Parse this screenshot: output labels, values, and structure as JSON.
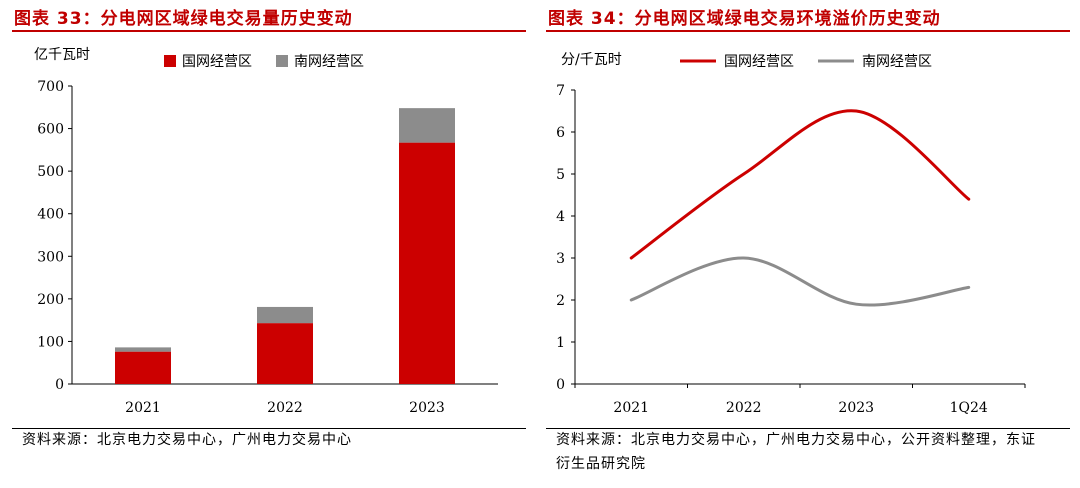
{
  "chart_data": [
    {
      "type": "bar",
      "stacked": true,
      "title": "图表 33：分电网区域绿电交易量历史变动",
      "ylabel": "亿千瓦时",
      "xlabel": "",
      "ylim": [
        0,
        700
      ],
      "yticks": [
        0,
        100,
        200,
        300,
        400,
        500,
        600,
        700
      ],
      "categories": [
        "2021",
        "2022",
        "2023"
      ],
      "series": [
        {
          "name": "国网经营区",
          "color": "#cc0000",
          "values": [
            76,
            143,
            567
          ]
        },
        {
          "name": "南网经营区",
          "color": "#8c8c8c",
          "values": [
            10,
            38,
            81
          ]
        }
      ],
      "legend": "top",
      "grid": false,
      "source": "资料来源：北京电力交易中心，广州电力交易中心"
    },
    {
      "type": "line",
      "title": "图表 34：分电网区域绿电交易环境溢价历史变动",
      "ylabel": "分/千瓦时",
      "xlabel": "",
      "ylim": [
        0,
        7
      ],
      "yticks": [
        0,
        1,
        2,
        3,
        4,
        5,
        6,
        7
      ],
      "categories": [
        "2021",
        "2022",
        "2023",
        "1Q24"
      ],
      "series": [
        {
          "name": "国网经营区",
          "color": "#cc0000",
          "values": [
            3.0,
            5.0,
            6.5,
            4.4
          ]
        },
        {
          "name": "南网经营区",
          "color": "#8c8c8c",
          "values": [
            2.0,
            3.0,
            1.9,
            2.3
          ]
        }
      ],
      "smooth": true,
      "legend": "top",
      "grid": false,
      "source": "资料来源：北京电力交易中心，广州电力交易中心，公开资料整理，东证衍生品研究院"
    }
  ]
}
